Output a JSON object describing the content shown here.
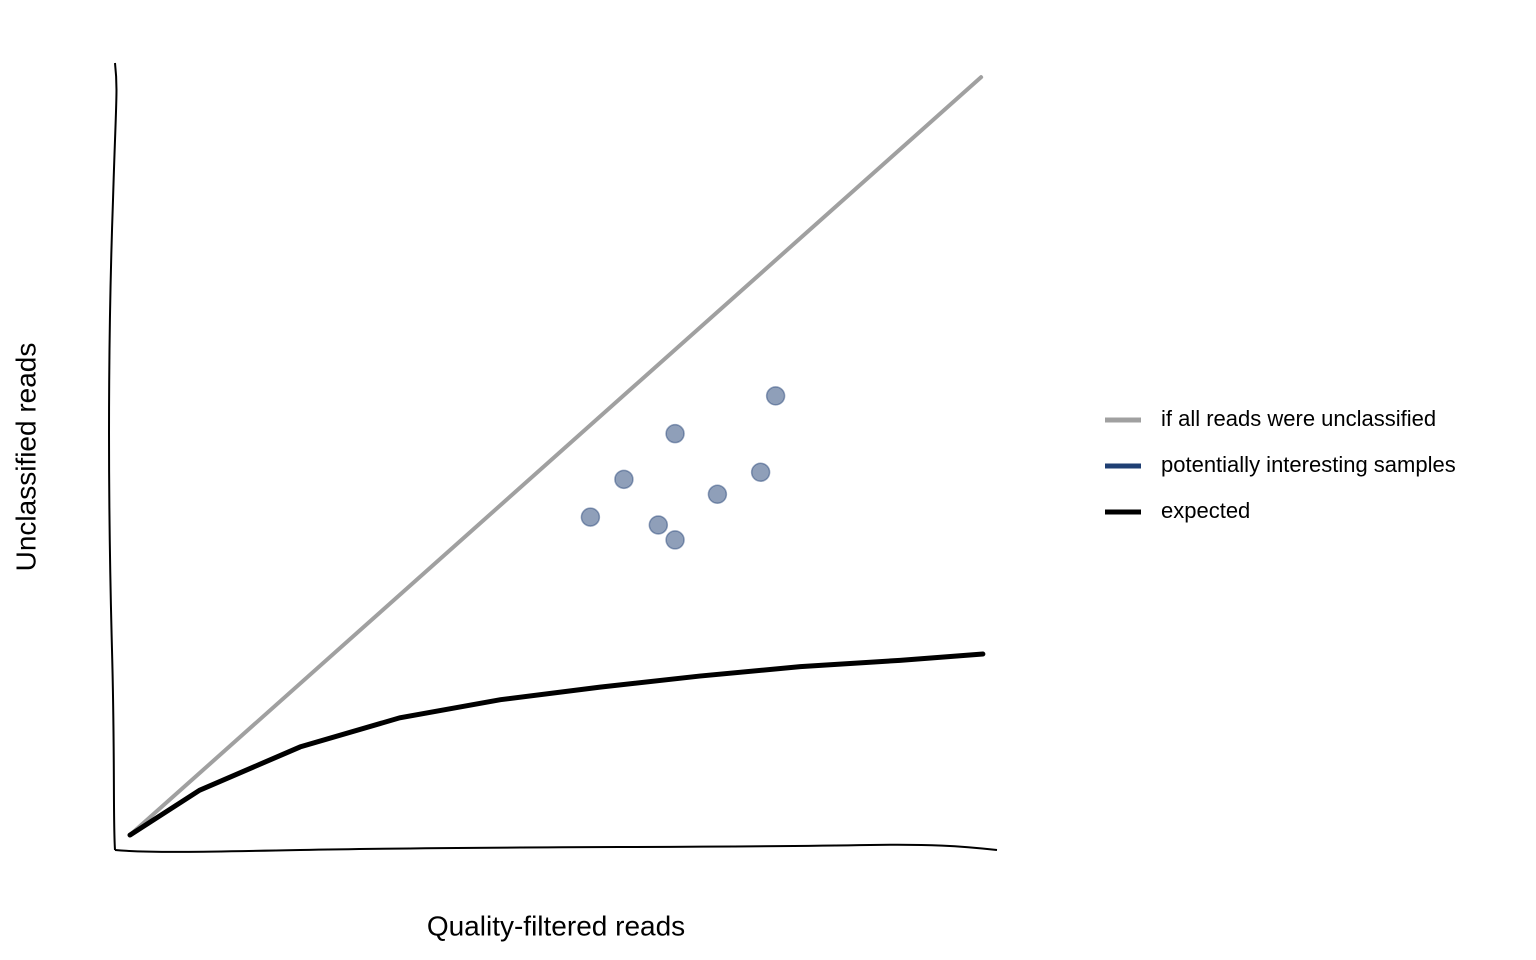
{
  "chart_data": {
    "type": "scatter",
    "x_label": "Quality-filtered reads",
    "y_label": "Unclassified reads",
    "xlim": [
      0,
      100
    ],
    "ylim": [
      0,
      100
    ],
    "legend": "right",
    "series": [
      {
        "name": "if all reads were unclassified",
        "color": "#a0a0a0",
        "type": "line",
        "x": [
          1.7,
          98.2
        ],
        "values": [
          1.9,
          98.2
        ]
      },
      {
        "name": "potentially interesting samples",
        "color": "#1f3f73",
        "type": "scatter",
        "x": [
          53.9,
          57.7,
          61.6,
          63.5,
          63.5,
          68.3,
          73.2,
          74.9
        ],
        "values": [
          42.3,
          47.1,
          41.3,
          39.4,
          52.9,
          45.2,
          48.0,
          57.7
        ]
      },
      {
        "name": "expected",
        "color": "#000000",
        "type": "line",
        "x": [
          1.7,
          9.6,
          21.0,
          32.3,
          43.7,
          55.0,
          66.3,
          77.7,
          89.0,
          98.4
        ],
        "values": [
          1.9,
          7.6,
          13.1,
          16.8,
          19.1,
          20.7,
          22.1,
          23.3,
          24.1,
          24.9
        ]
      }
    ]
  }
}
